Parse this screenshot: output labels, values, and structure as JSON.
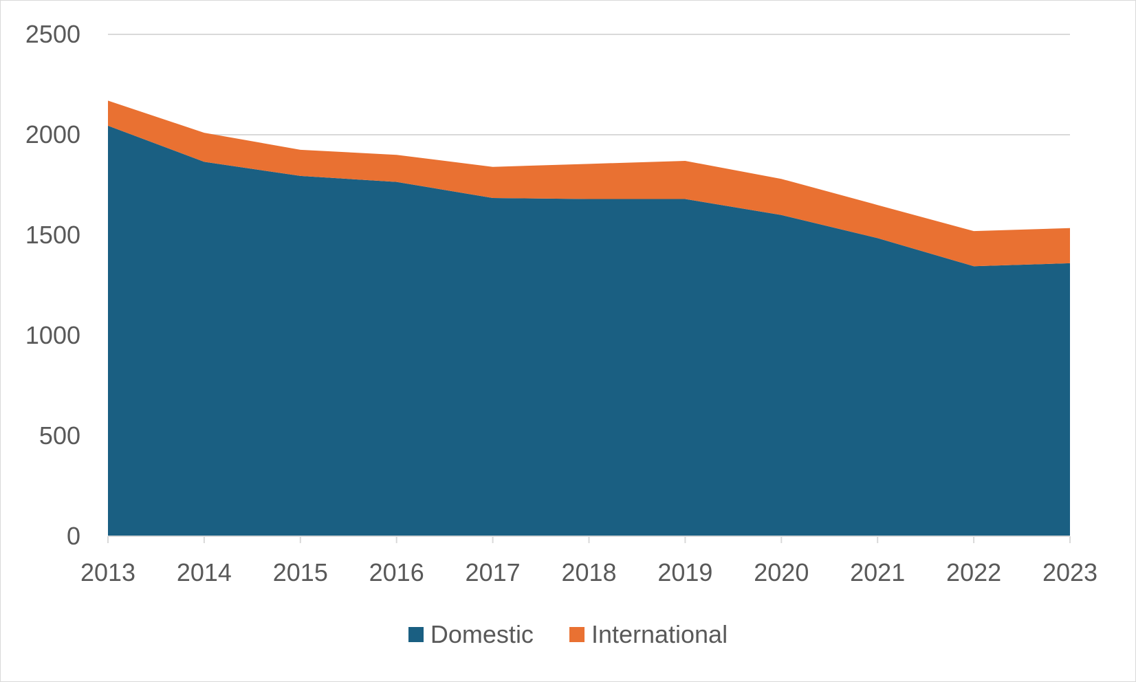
{
  "chart_data": {
    "type": "area",
    "stacked": true,
    "x": [
      "2013",
      "2014",
      "2015",
      "2016",
      "2017",
      "2018",
      "2019",
      "2020",
      "2021",
      "2022",
      "2023"
    ],
    "series": [
      {
        "name": "Domestic",
        "color": "#1a5f82",
        "values": [
          2045,
          1865,
          1795,
          1765,
          1685,
          1680,
          1680,
          1600,
          1485,
          1345,
          1360
        ]
      },
      {
        "name": "International",
        "color": "#e97132",
        "values": [
          125,
          145,
          130,
          135,
          155,
          175,
          190,
          180,
          165,
          175,
          175
        ]
      }
    ],
    "y_ticks": [
      "0",
      "500",
      "1000",
      "1500",
      "2000",
      "2500"
    ],
    "ylim": [
      0,
      2500
    ],
    "title": "",
    "xlabel": "",
    "ylabel": "",
    "grid": true,
    "legend_position": "bottom"
  }
}
